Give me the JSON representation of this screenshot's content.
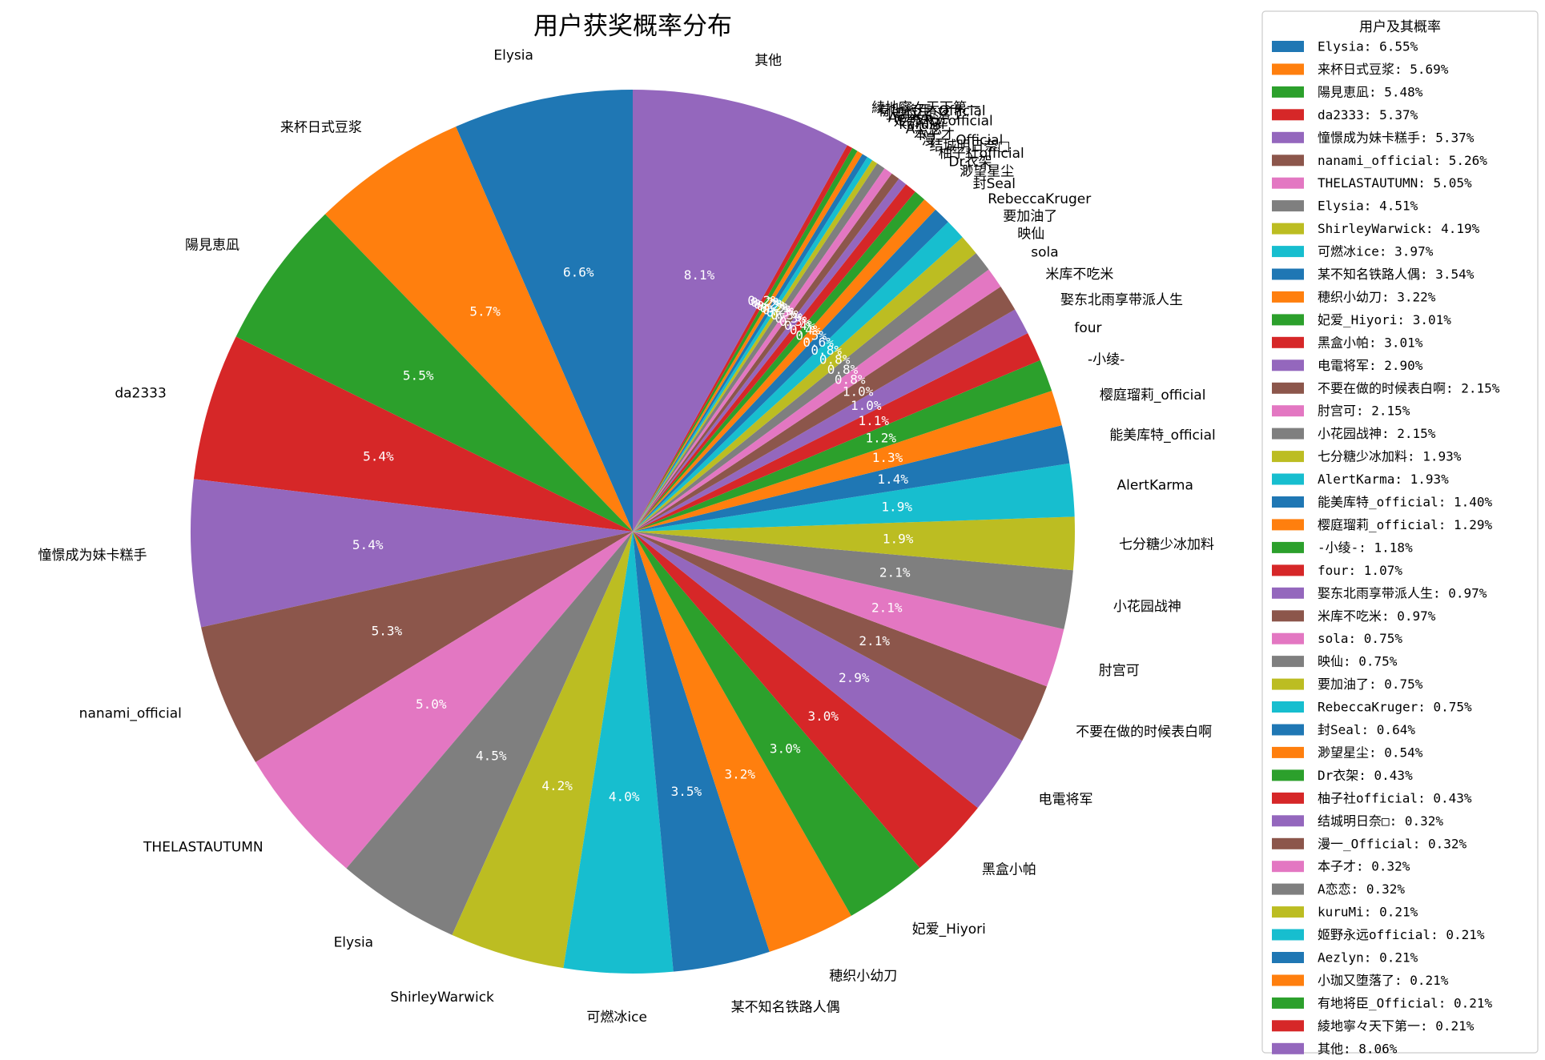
{
  "chart_data": {
    "type": "pie",
    "title": "用户获奖概率分布",
    "legend_title": "用户及其概率",
    "legend_position": "right",
    "start_angle_deg": 90,
    "direction": "counterclockwise",
    "slices": [
      {
        "label": "Elysia",
        "value": 6.55,
        "pct_text": "6.6%",
        "legend_text": "Elysia: 6.55%",
        "color": "#1f77b4"
      },
      {
        "label": "来杯日式豆浆",
        "value": 5.69,
        "pct_text": "5.7%",
        "legend_text": "来杯日式豆浆: 5.69%",
        "color": "#ff7f0e"
      },
      {
        "label": "陽見恵凪",
        "value": 5.48,
        "pct_text": "5.5%",
        "legend_text": "陽見恵凪: 5.48%",
        "color": "#2ca02c"
      },
      {
        "label": "da2333",
        "value": 5.37,
        "pct_text": "5.4%",
        "legend_text": "da2333: 5.37%",
        "color": "#d62728"
      },
      {
        "label": "憧憬成为妹卡糕手",
        "value": 5.37,
        "pct_text": "5.4%",
        "legend_text": "憧憬成为妹卡糕手: 5.37%",
        "color": "#9467bd"
      },
      {
        "label": "nanami_official",
        "value": 5.26,
        "pct_text": "5.3%",
        "legend_text": "nanami_official: 5.26%",
        "color": "#8c564b"
      },
      {
        "label": "THELASTAUTUMN",
        "value": 5.05,
        "pct_text": "5.0%",
        "legend_text": "THELASTAUTUMN: 5.05%",
        "color": "#e377c2"
      },
      {
        "label": "Elysia",
        "value": 4.51,
        "pct_text": "4.5%",
        "legend_text": "Elysia: 4.51%",
        "color": "#7f7f7f"
      },
      {
        "label": "ShirleyWarwick",
        "value": 4.19,
        "pct_text": "4.2%",
        "legend_text": "ShirleyWarwick: 4.19%",
        "color": "#bcbd22"
      },
      {
        "label": "可燃冰ice",
        "value": 3.97,
        "pct_text": "4.0%",
        "legend_text": "可燃冰ice: 3.97%",
        "color": "#17becf"
      },
      {
        "label": "某不知名铁路人偶",
        "value": 3.54,
        "pct_text": "3.5%",
        "legend_text": "某不知名铁路人偶: 3.54%",
        "color": "#1f77b4"
      },
      {
        "label": "穂织小幼刀",
        "value": 3.22,
        "pct_text": "3.2%",
        "legend_text": "穂织小幼刀: 3.22%",
        "color": "#ff7f0e"
      },
      {
        "label": "妃爱_Hiyori",
        "value": 3.01,
        "pct_text": "3.0%",
        "legend_text": "妃爱_Hiyori: 3.01%",
        "color": "#2ca02c"
      },
      {
        "label": "黑盒小帕",
        "value": 3.01,
        "pct_text": "3.0%",
        "legend_text": "黑盒小帕: 3.01%",
        "color": "#d62728"
      },
      {
        "label": "电電将军",
        "value": 2.9,
        "pct_text": "2.9%",
        "legend_text": "电電将军: 2.90%",
        "color": "#9467bd"
      },
      {
        "label": "不要在做的时候表白啊",
        "value": 2.15,
        "pct_text": "2.1%",
        "legend_text": "不要在做的时候表白啊: 2.15%",
        "color": "#8c564b"
      },
      {
        "label": "肘宫可",
        "value": 2.15,
        "pct_text": "2.1%",
        "legend_text": "肘宫可: 2.15%",
        "color": "#e377c2"
      },
      {
        "label": "小花园战神",
        "value": 2.15,
        "pct_text": "2.1%",
        "legend_text": "小花园战神: 2.15%",
        "color": "#7f7f7f"
      },
      {
        "label": "七分糖少冰加料",
        "value": 1.93,
        "pct_text": "1.9%",
        "legend_text": "七分糖少冰加料: 1.93%",
        "color": "#bcbd22"
      },
      {
        "label": "AlertKarma",
        "value": 1.93,
        "pct_text": "1.9%",
        "legend_text": "AlertKarma: 1.93%",
        "color": "#17becf"
      },
      {
        "label": "能美库特_official",
        "value": 1.4,
        "pct_text": "1.4%",
        "legend_text": "能美库特_official: 1.40%",
        "color": "#1f77b4"
      },
      {
        "label": "樱庭瑠莉_official",
        "value": 1.29,
        "pct_text": "1.3%",
        "legend_text": "樱庭瑠莉_official: 1.29%",
        "color": "#ff7f0e"
      },
      {
        "label": "-小绫-",
        "value": 1.18,
        "pct_text": "1.2%",
        "legend_text": "-小绫-: 1.18%",
        "color": "#2ca02c"
      },
      {
        "label": "four",
        "value": 1.07,
        "pct_text": "1.1%",
        "legend_text": "four: 1.07%",
        "color": "#d62728"
      },
      {
        "label": "娶东北雨享带派人生",
        "value": 0.97,
        "pct_text": "1.0%",
        "legend_text": "娶东北雨享带派人生: 0.97%",
        "color": "#9467bd"
      },
      {
        "label": "米库不吃米",
        "value": 0.97,
        "pct_text": "1.0%",
        "legend_text": "米库不吃米: 0.97%",
        "color": "#8c564b"
      },
      {
        "label": "sola",
        "value": 0.75,
        "pct_text": "0.8%",
        "legend_text": "sola: 0.75%",
        "color": "#e377c2"
      },
      {
        "label": "映仙",
        "value": 0.75,
        "pct_text": "0.8%",
        "legend_text": "映仙: 0.75%",
        "color": "#7f7f7f"
      },
      {
        "label": "要加油了",
        "value": 0.75,
        "pct_text": "0.8%",
        "legend_text": "要加油了: 0.75%",
        "color": "#bcbd22"
      },
      {
        "label": "RebeccaKruger",
        "value": 0.75,
        "pct_text": "0.8%",
        "legend_text": "RebeccaKruger: 0.75%",
        "color": "#17becf"
      },
      {
        "label": "封Seal",
        "value": 0.64,
        "pct_text": "0.6%",
        "legend_text": "封Seal: 0.64%",
        "color": "#1f77b4"
      },
      {
        "label": "渺望星尘",
        "value": 0.54,
        "pct_text": "0.5%",
        "legend_text": "渺望星尘: 0.54%",
        "color": "#ff7f0e"
      },
      {
        "label": "Dr衣架",
        "value": 0.43,
        "pct_text": "0.4%",
        "legend_text": "Dr衣架: 0.43%",
        "color": "#2ca02c"
      },
      {
        "label": "柚子社official",
        "value": 0.43,
        "pct_text": "0.4%",
        "legend_text": "柚子社official: 0.43%",
        "color": "#d62728"
      },
      {
        "label": "结城明日奈□",
        "value": 0.32,
        "pct_text": "0.3%",
        "legend_text": "结城明日奈□: 0.32%",
        "color": "#9467bd"
      },
      {
        "label": "漫一_Official",
        "value": 0.32,
        "pct_text": "0.3%",
        "legend_text": "漫一_Official: 0.32%",
        "color": "#8c564b"
      },
      {
        "label": "本子才",
        "value": 0.32,
        "pct_text": "0.3%",
        "legend_text": "本子才: 0.32%",
        "color": "#e377c2"
      },
      {
        "label": "A恋恋",
        "value": 0.32,
        "pct_text": "0.3%",
        "legend_text": "A恋恋: 0.32%",
        "color": "#7f7f7f"
      },
      {
        "label": "kuruMi",
        "value": 0.21,
        "pct_text": "0.2%",
        "legend_text": "kuruMi: 0.21%",
        "color": "#bcbd22"
      },
      {
        "label": "姬野永远official",
        "value": 0.21,
        "pct_text": "0.2%",
        "legend_text": "姬野永远official: 0.21%",
        "color": "#17becf"
      },
      {
        "label": "Aezlyn",
        "value": 0.21,
        "pct_text": "0.2%",
        "legend_text": "Aezlyn: 0.21%",
        "color": "#1f77b4"
      },
      {
        "label": "小珈又堕落了",
        "value": 0.21,
        "pct_text": "0.2%",
        "legend_text": "小珈又堕落了: 0.21%",
        "color": "#ff7f0e"
      },
      {
        "label": "有地将臣_Official",
        "value": 0.21,
        "pct_text": "0.2%",
        "legend_text": "有地将臣_Official: 0.21%",
        "color": "#2ca02c"
      },
      {
        "label": "綾地寧々天下第一",
        "value": 0.21,
        "pct_text": "0.2%",
        "legend_text": "綾地寧々天下第一: 0.21%",
        "color": "#d62728"
      },
      {
        "label": "其他",
        "value": 8.06,
        "pct_text": "8.1%",
        "legend_text": "其他: 8.06%",
        "color": "#9467bd"
      }
    ]
  }
}
